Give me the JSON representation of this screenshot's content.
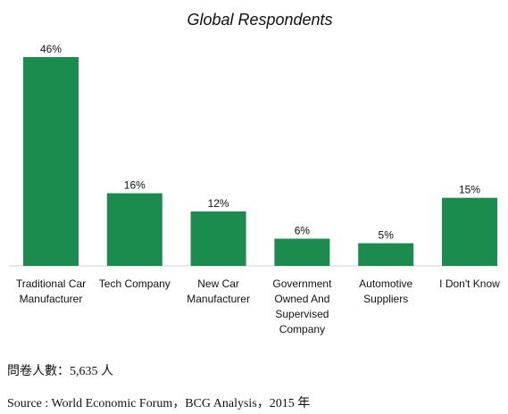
{
  "chart_data": {
    "type": "bar",
    "title": "Global Respondents",
    "categories": [
      [
        "Traditional Car",
        "Manufacturer"
      ],
      [
        "Tech Company"
      ],
      [
        "New Car",
        "Manufacturer"
      ],
      [
        "Government",
        "Owned And",
        "Supervised",
        "Company"
      ],
      [
        "Automotive",
        "Suppliers"
      ],
      [
        "I Don't Know"
      ]
    ],
    "values": [
      46,
      16,
      12,
      6,
      5,
      15
    ],
    "value_labels": [
      "46%",
      "16%",
      "12%",
      "6%",
      "5%",
      "15%"
    ],
    "unit": "%",
    "ylim": [
      0,
      46
    ],
    "bar_color": "#1b8c4e",
    "axis_color": "#d0d0d0",
    "grid": false,
    "legend": "none"
  },
  "notes": {
    "respondents": "問卷人數：5,635 人",
    "source": "Source : World Economic Forum，BCG Analysis，2015 年"
  }
}
